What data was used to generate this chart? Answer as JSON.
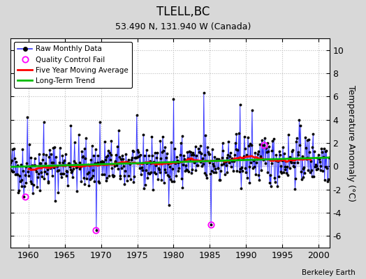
{
  "title": "TLELL,BC",
  "subtitle": "53.490 N, 131.940 W (Canada)",
  "ylabel": "Temperature Anomaly (°C)",
  "credit": "Berkeley Earth",
  "xlim": [
    1957.5,
    2001.5
  ],
  "ylim": [
    -7,
    11
  ],
  "yticks": [
    -6,
    -4,
    -2,
    0,
    2,
    4,
    6,
    8,
    10
  ],
  "xticks": [
    1960,
    1965,
    1970,
    1975,
    1980,
    1985,
    1990,
    1995,
    2000
  ],
  "bg_color": "#d8d8d8",
  "plot_bg": "#ffffff",
  "raw_color": "#3333ff",
  "raw_fill": "#aaaaff",
  "ma_color": "#ff0000",
  "trend_color": "#00bb00",
  "qc_color": "#ff00ff",
  "seed": 42,
  "n_months": 528,
  "start_year": 1957.5,
  "qc_fails": [
    [
      1959.5,
      -2.6
    ],
    [
      1969.3,
      -5.5
    ],
    [
      1985.2,
      -5.0
    ],
    [
      1992.5,
      1.8
    ]
  ]
}
